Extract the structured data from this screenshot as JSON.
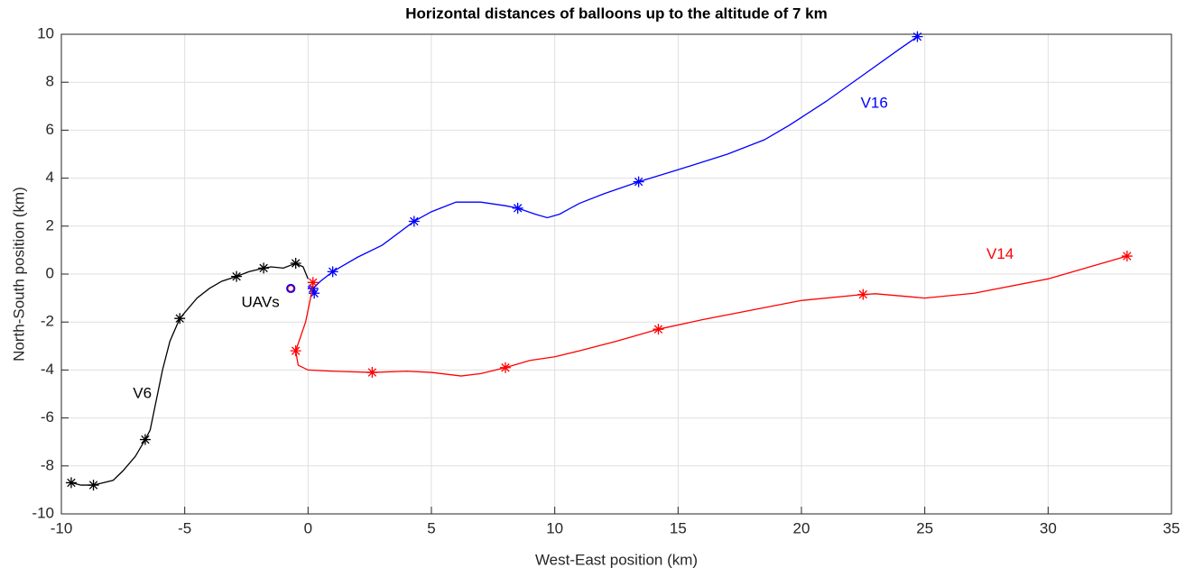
{
  "chart_data": {
    "type": "line",
    "title": "Horizontal distances of balloons up to the altitude of 7 km",
    "x_label": "West-East position (km)",
    "y_label": "North-South position (km)",
    "xlim": [
      -10,
      35
    ],
    "xticks": [
      -10,
      -5,
      0,
      5,
      10,
      15,
      20,
      25,
      30,
      35
    ],
    "ylim": [
      -10,
      10
    ],
    "yticks": [
      -10,
      -8,
      -6,
      -4,
      -2,
      0,
      2,
      4,
      6,
      8,
      10
    ],
    "grid": true,
    "series": [
      {
        "color": "#000000",
        "x": [
          0,
          -0.2,
          -0.5,
          -1,
          -1.5,
          -1.8,
          -2.4,
          -2.9,
          -3.5,
          -4,
          -4.5,
          -5.2,
          -5.6,
          -5.9,
          -6.2,
          -6.4,
          -6.6,
          -7.0,
          -7.5,
          -7.9,
          -8.7,
          -9.2,
          -9.6
        ],
        "values": [
          -0.2,
          0.3,
          0.45,
          0.25,
          0.3,
          0.25,
          0.1,
          -0.1,
          -0.3,
          -0.6,
          -1.0,
          -1.85,
          -2.8,
          -4,
          -5.5,
          -6.5,
          -6.9,
          -7.6,
          -8.2,
          -8.6,
          -8.8,
          -8.8,
          -8.7
        ],
        "marker_x": [
          -0.5,
          -1.8,
          -2.9,
          -5.2,
          -6.6,
          -8.7,
          -9.6
        ],
        "marker_values": [
          0.45,
          0.25,
          -0.1,
          -1.85,
          -6.9,
          -8.8,
          -8.7
        ]
      },
      {
        "color": "#0000ff",
        "x": [
          0,
          0.25,
          0.2,
          0.5,
          1.0,
          2,
          3,
          4.3,
          5,
          6,
          7,
          8,
          8.5,
          9.2,
          9.7,
          10.2,
          11,
          12,
          13.4,
          15,
          17,
          18.5,
          19.5,
          21,
          22.5,
          24,
          24.7
        ],
        "values": [
          -0.5,
          -0.75,
          -0.6,
          -0.3,
          0.1,
          0.7,
          1.2,
          2.2,
          2.6,
          3.0,
          3.0,
          2.85,
          2.75,
          2.5,
          2.35,
          2.5,
          2.95,
          3.35,
          3.85,
          4.35,
          5.0,
          5.6,
          6.2,
          7.2,
          8.3,
          9.4,
          9.9
        ],
        "marker_x": [
          0.25,
          0.2,
          1.0,
          4.3,
          8.5,
          13.4,
          24.7
        ],
        "marker_values": [
          -0.8,
          -0.6,
          0.1,
          2.2,
          2.75,
          3.85,
          9.9
        ]
      },
      {
        "color": "#ff0000",
        "x": [
          0.2,
          0.1,
          -0.1,
          -0.5,
          -0.4,
          0,
          1,
          2.6,
          4,
          5,
          6.2,
          7,
          8,
          9,
          10,
          11,
          12.5,
          14.2,
          16,
          18,
          20,
          22.5,
          23,
          25,
          27,
          30,
          33.2
        ],
        "values": [
          -0.4,
          -1,
          -2,
          -3.2,
          -3.8,
          -4.0,
          -4.05,
          -4.1,
          -4.05,
          -4.1,
          -4.25,
          -4.15,
          -3.9,
          -3.6,
          -3.45,
          -3.2,
          -2.8,
          -2.3,
          -1.9,
          -1.5,
          -1.1,
          -0.85,
          -0.82,
          -1.0,
          -0.8,
          -0.2,
          0.75
        ],
        "marker_x": [
          0.2,
          -0.5,
          2.6,
          8,
          14.2,
          22.5,
          33.2
        ],
        "marker_values": [
          -0.35,
          -3.2,
          -4.1,
          -3.9,
          -2.3,
          -0.85,
          0.75
        ]
      }
    ],
    "uav_points": [
      {
        "x": -0.7,
        "y": -0.6,
        "color": "#ff0000"
      },
      {
        "x": -0.7,
        "y": -0.6,
        "color": "#0000ff"
      }
    ],
    "annotations": [
      {
        "text": "V6",
        "x": -7.1,
        "y": -5.0,
        "color": "#000000"
      },
      {
        "text": "V16",
        "x": 22.4,
        "y": 7.1,
        "color": "#0000ff"
      },
      {
        "text": "V14",
        "x": 27.5,
        "y": 0.8,
        "color": "#ff0000"
      },
      {
        "text": "UAVs",
        "x": -2.7,
        "y": -1.2,
        "color": "#000000"
      }
    ]
  }
}
